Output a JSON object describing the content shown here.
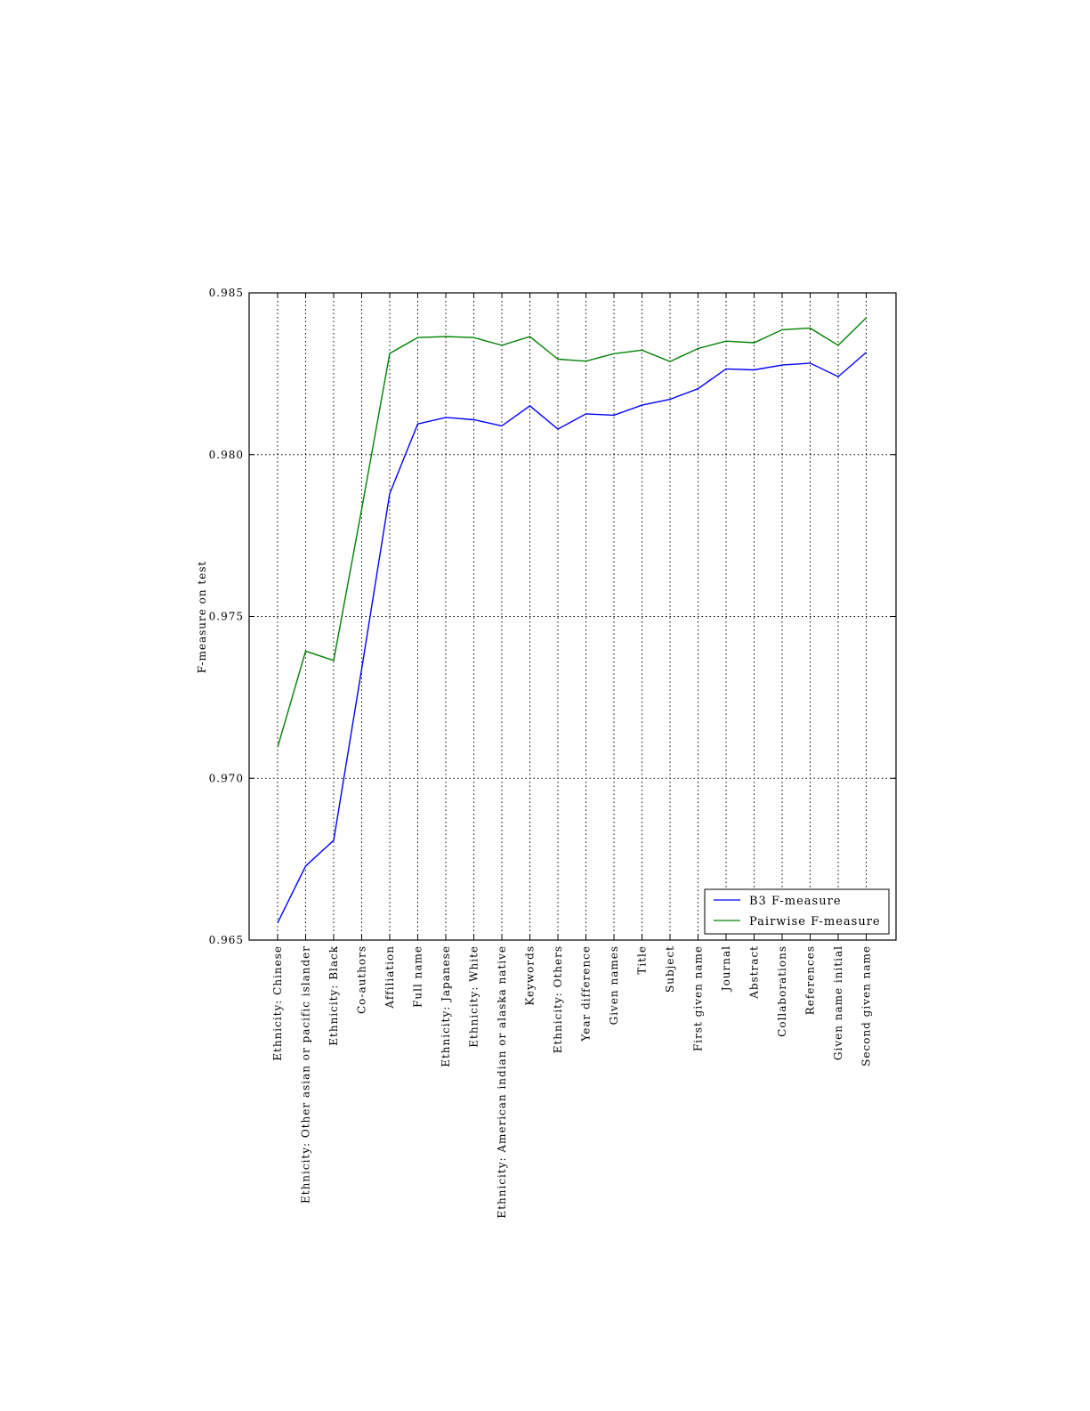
{
  "chart_data": {
    "type": "line",
    "title": "",
    "xlabel": "",
    "ylabel": "F-measure on test",
    "ylim": [
      0.965,
      0.985
    ],
    "yticks": [
      "0.965",
      "0.970",
      "0.975",
      "0.980",
      "0.985"
    ],
    "grid": true,
    "legend_placement": "lower-right",
    "categories": [
      "Ethnicity: Chinese",
      "Ethnicity: Other asian or pacific islander",
      "Ethnicity: Black",
      "Co-authors",
      "Affiliation",
      "Full name",
      "Ethnicity: Japanese",
      "Ethnicity: White",
      "Ethnicity: American indian or alaska native",
      "Keywords",
      "Ethnicity: Others",
      "Year difference",
      "Given names",
      "Title",
      "Subject",
      "First given name",
      "Journal",
      "Abstract",
      "Collaborations",
      "References",
      "Given name initial",
      "Second given name"
    ],
    "series": [
      {
        "name": "B3 F-measure",
        "color": "#0000ff",
        "values": [
          0.96553,
          0.96729,
          0.96808,
          0.97338,
          0.9788,
          0.98095,
          0.98115,
          0.98108,
          0.98089,
          0.98151,
          0.98079,
          0.98126,
          0.98122,
          0.98153,
          0.98171,
          0.98204,
          0.98265,
          0.98262,
          0.98277,
          0.98283,
          0.98241,
          0.98316
        ]
      },
      {
        "name": "Pairwise F-measure",
        "color": "#008000",
        "values": [
          0.97096,
          0.97393,
          0.97364,
          0.97832,
          0.98313,
          0.98362,
          0.98365,
          0.98362,
          0.98338,
          0.98365,
          0.98295,
          0.98289,
          0.98312,
          0.98323,
          0.98288,
          0.98328,
          0.98351,
          0.98346,
          0.98386,
          0.98391,
          0.98338,
          0.98423
        ]
      }
    ]
  }
}
